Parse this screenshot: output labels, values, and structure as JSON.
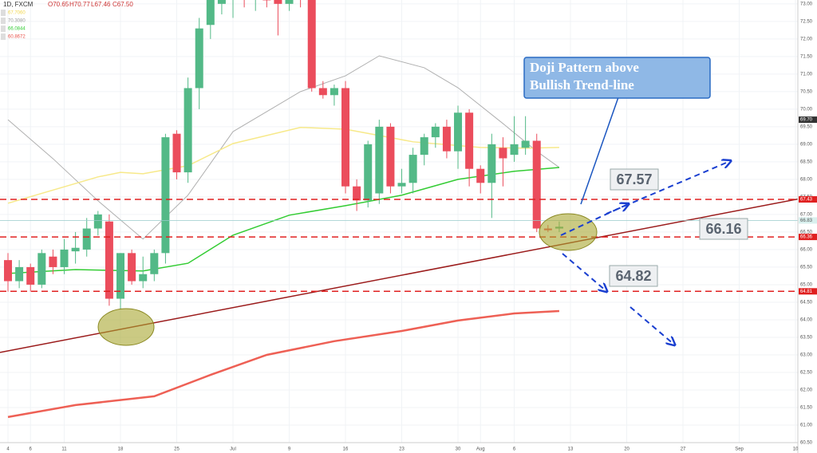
{
  "chart_data": {
    "type": "candlestick",
    "header": {
      "symbol": "1D, FXCM",
      "ohlc": [
        "O70.65",
        "H70.77",
        "L67.46",
        "C67.50"
      ]
    },
    "indicator_legend": [
      {
        "text": "67.7060",
        "color": "#f2d64b"
      },
      {
        "text": "70.3080",
        "color": "#9a9a9a"
      },
      {
        "text": "66.0844",
        "color": "#33cc33"
      },
      {
        "text": "60.8672",
        "color": "#e8524a"
      }
    ],
    "xlim": [
      -0.71,
      70.21
    ],
    "ylim": [
      60.5,
      73.11
    ],
    "xticks": [
      {
        "value": 0,
        "label": "4"
      },
      {
        "value": 2,
        "label": "6"
      },
      {
        "value": 5,
        "label": "11"
      },
      {
        "value": 10,
        "label": "18"
      },
      {
        "value": 15,
        "label": "25"
      },
      {
        "value": 20,
        "label": "Jul"
      },
      {
        "value": 25,
        "label": "9"
      },
      {
        "value": 30,
        "label": "16"
      },
      {
        "value": 35,
        "label": "23"
      },
      {
        "value": 40,
        "label": "30"
      },
      {
        "value": 42,
        "label": "Aug"
      },
      {
        "value": 45,
        "label": "6"
      },
      {
        "value": 50,
        "label": "13"
      },
      {
        "value": 55,
        "label": "20"
      },
      {
        "value": 60,
        "label": "27"
      },
      {
        "value": 65,
        "label": "Sep"
      },
      {
        "value": 70,
        "label": "10"
      }
    ],
    "yticks": [
      {
        "value": 60.5,
        "label": "60.50"
      },
      {
        "value": 61,
        "label": "61.00"
      },
      {
        "value": 61.5,
        "label": "61.50"
      },
      {
        "value": 62,
        "label": "62.00"
      },
      {
        "value": 62.5,
        "label": "62.50"
      },
      {
        "value": 63,
        "label": "63.00"
      },
      {
        "value": 63.5,
        "label": "63.50"
      },
      {
        "value": 64,
        "label": "64.00"
      },
      {
        "value": 64.5,
        "label": "64.50"
      },
      {
        "value": 65,
        "label": "65.00"
      },
      {
        "value": 65.5,
        "label": "65.50"
      },
      {
        "value": 66,
        "label": "66.00"
      },
      {
        "value": 66.5,
        "label": "66.50"
      },
      {
        "value": 67,
        "label": "67.00"
      },
      {
        "value": 67.5,
        "label": "67.50"
      },
      {
        "value": 68,
        "label": "68.00"
      },
      {
        "value": 68.5,
        "label": "68.50"
      },
      {
        "value": 69,
        "label": "69.00"
      },
      {
        "value": 69.5,
        "label": "69.50"
      },
      {
        "value": 70,
        "label": "70.00"
      },
      {
        "value": 70.5,
        "label": "70.50"
      },
      {
        "value": 71,
        "label": "71.00"
      },
      {
        "value": 71.5,
        "label": "71.50"
      },
      {
        "value": 72,
        "label": "72.00"
      },
      {
        "value": 72.5,
        "label": "72.50"
      },
      {
        "value": 73,
        "label": "73.00"
      }
    ],
    "up_color": "#53b987",
    "down_color": "#eb4d5c",
    "x": [
      0,
      1,
      2,
      3,
      4,
      5,
      6,
      7,
      8,
      9,
      10,
      11,
      12,
      13,
      14,
      15,
      16,
      17,
      18,
      19,
      20,
      21,
      22,
      23,
      24,
      25,
      26,
      27,
      28,
      29,
      30,
      31,
      32,
      33,
      34,
      35,
      36,
      37,
      38,
      39,
      40,
      41,
      42,
      43,
      44,
      45,
      46,
      47,
      48,
      49
    ],
    "open": [
      65.7,
      65.1,
      65.5,
      65.0,
      65.8,
      65.5,
      65.95,
      66.0,
      66.6,
      66.8,
      64.6,
      65.9,
      65.1,
      65.3,
      65.9,
      69.3,
      68.2,
      70.6,
      72.4,
      73.0,
      73.3,
      73.5,
      73.4,
      73.3,
      73.2,
      73.0,
      73.4,
      73.2,
      70.6,
      70.4,
      70.6,
      67.8,
      67.4,
      67.6,
      69.5,
      67.8,
      67.9,
      68.7,
      69.2,
      69.5,
      68.8,
      69.9,
      68.3,
      67.9,
      68.9,
      68.7,
      68.9,
      69.1,
      66.6,
      66.6
    ],
    "high": [
      65.9,
      65.7,
      65.6,
      66.0,
      66.0,
      66.3,
      66.5,
      66.9,
      67.1,
      67.0,
      65.9,
      66.0,
      65.8,
      66.0,
      69.3,
      69.4,
      70.9,
      72.6,
      73.2,
      73.4,
      73.6,
      73.8,
      73.7,
      73.5,
      73.4,
      73.5,
      73.6,
      73.3,
      70.8,
      70.7,
      70.8,
      68.0,
      69.1,
      69.7,
      69.6,
      68.3,
      68.9,
      69.3,
      69.6,
      69.7,
      70.1,
      70.0,
      68.4,
      69.3,
      69.2,
      69.8,
      69.8,
      69.3,
      66.7,
      66.8
    ],
    "low": [
      64.8,
      64.9,
      64.8,
      64.9,
      65.3,
      65.3,
      65.6,
      65.8,
      66.4,
      64.4,
      64.3,
      65.0,
      64.9,
      65.1,
      65.6,
      68.0,
      67.9,
      70.0,
      72.0,
      72.7,
      72.6,
      72.9,
      72.8,
      72.9,
      72.1,
      72.8,
      72.9,
      70.5,
      70.3,
      70.1,
      67.6,
      67.1,
      67.2,
      67.3,
      67.6,
      67.6,
      67.6,
      68.4,
      68.9,
      68.6,
      68.3,
      67.8,
      67.6,
      66.9,
      67.8,
      68.5,
      68.7,
      66.5,
      66.5,
      66.5
    ],
    "close": [
      65.1,
      65.5,
      65.0,
      65.9,
      65.5,
      66.0,
      66.05,
      66.6,
      67.0,
      64.6,
      65.9,
      65.1,
      65.3,
      65.9,
      69.2,
      68.2,
      70.6,
      72.3,
      73.2,
      73.3,
      73.5,
      73.4,
      73.6,
      73.1,
      73.0,
      73.3,
      73.2,
      70.6,
      70.4,
      70.6,
      67.8,
      67.4,
      69.0,
      69.5,
      67.8,
      67.9,
      68.7,
      69.2,
      69.5,
      68.8,
      69.9,
      68.3,
      67.9,
      69.0,
      68.6,
      69.0,
      69.1,
      66.6,
      66.55,
      66.65
    ],
    "overlays": [
      {
        "color": "#b0b0b0",
        "x": [
          0,
          4,
          8,
          12,
          16,
          20,
          26,
          30,
          33,
          37,
          40,
          44,
          47,
          49
        ],
        "values": [
          69.7,
          68.59,
          67.39,
          66.3,
          67.55,
          69.36,
          70.5,
          70.95,
          71.52,
          71.18,
          70.61,
          69.59,
          68.8,
          68.34
        ]
      },
      {
        "color": "#f7e98a",
        "x": [
          0,
          8,
          10,
          12,
          16,
          20,
          26,
          30,
          36,
          42,
          46,
          49
        ],
        "values": [
          67.32,
          68.07,
          68.2,
          68.16,
          68.39,
          69.02,
          69.48,
          69.43,
          69.07,
          68.91,
          68.89,
          68.91
        ]
      },
      {
        "color": "#33cc33",
        "x": [
          0,
          6,
          12,
          16,
          20,
          25,
          30,
          35,
          40,
          45,
          49
        ],
        "values": [
          65.32,
          65.43,
          65.39,
          65.61,
          66.41,
          66.98,
          67.25,
          67.55,
          68.0,
          68.23,
          68.34
        ]
      },
      {
        "color": "#ee6055",
        "x": [
          0,
          6,
          13,
          18,
          23,
          29,
          35,
          40,
          45,
          49
        ],
        "values": [
          61.23,
          61.57,
          61.82,
          62.43,
          63.0,
          63.39,
          63.68,
          63.98,
          64.18,
          64.25
        ]
      }
    ],
    "trendline": {
      "color": "#9b1b1b",
      "x": [
        -0.71,
        70.21
      ],
      "values": [
        63.07,
        67.44
      ]
    },
    "levels": [
      {
        "value": 67.43,
        "label": "67.43"
      },
      {
        "value": 66.36,
        "label": "66.36"
      },
      {
        "value": 64.81,
        "label": "64.81"
      }
    ],
    "current_price": {
      "value": 66.83,
      "label": "66.83"
    },
    "last_marker": {
      "value": 69.7,
      "label": "69.70"
    },
    "callout": "Doji Pattern above Bullish Trend-line",
    "annotations": [
      "67.57",
      "66.16",
      "64.82"
    ]
  }
}
